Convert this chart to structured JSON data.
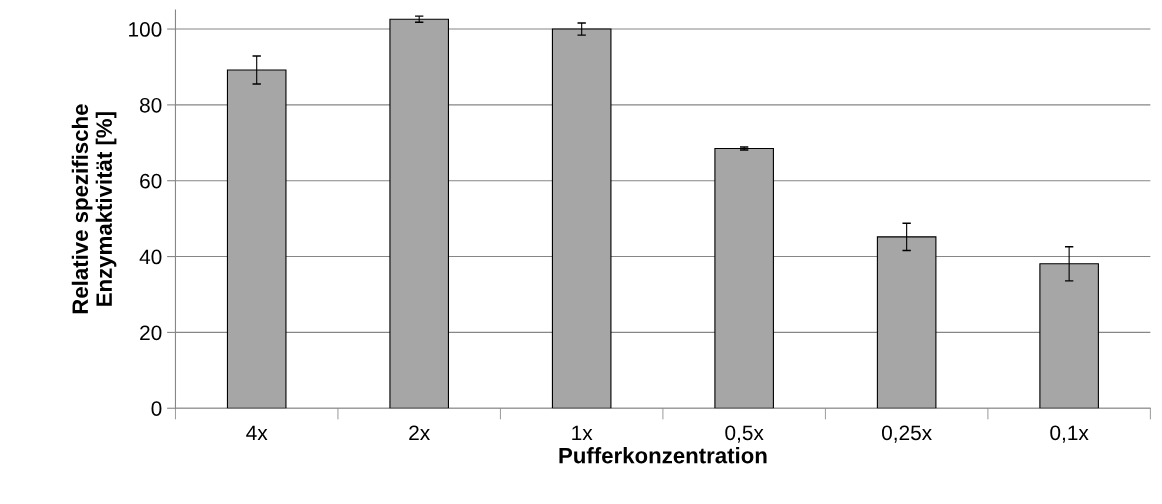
{
  "chart_data": {
    "type": "bar",
    "xlabel": "Pufferkonzentration",
    "ylabel": "Relative spezifische\nEnzymaktivität [%]",
    "categories": [
      "4x",
      "2x",
      "1x",
      "0,5x",
      "0,25x",
      "0,1x"
    ],
    "values": [
      89.2,
      102.6,
      100,
      68.5,
      45.2,
      38.1
    ],
    "errors": [
      3.7,
      0.8,
      1.6,
      0.4,
      3.6,
      4.5
    ],
    "color": "#a6a6a6",
    "ylim": [
      0,
      105
    ],
    "yticks": [
      0,
      20,
      40,
      60,
      80,
      100
    ],
    "grid": "y"
  }
}
